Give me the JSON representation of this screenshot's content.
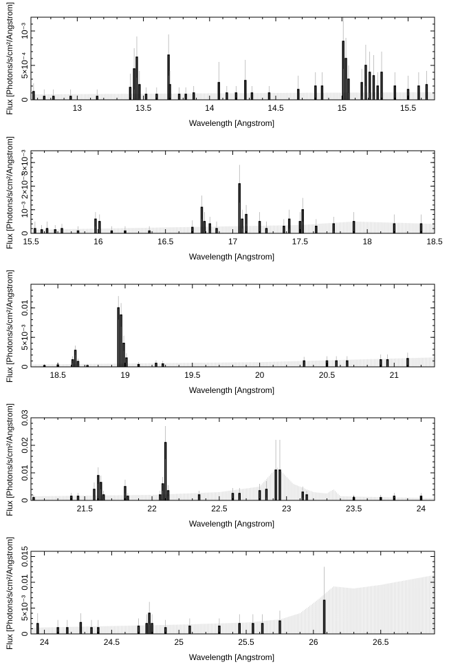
{
  "chart_data": [
    {
      "type": "bar",
      "xlabel": "Wavelength [Angstrom]",
      "ylabel": "Flux [Photons/s/cm²/Angstrom]",
      "xlim": [
        12.65,
        15.7
      ],
      "ylim": [
        0,
        0.0012
      ],
      "x_ticks": [
        {
          "v": 13,
          "label": "13"
        },
        {
          "v": 13.5,
          "label": "13.5"
        },
        {
          "v": 14,
          "label": "14"
        },
        {
          "v": 14.5,
          "label": "14.5"
        },
        {
          "v": 15,
          "label": "15"
        },
        {
          "v": 15.5,
          "label": "15.5"
        }
      ],
      "y_ticks": [
        {
          "v": 0,
          "label": "0"
        },
        {
          "v": 0.0005,
          "label": "5×10⁻⁴"
        },
        {
          "v": 0.001,
          "label": "10⁻³"
        }
      ],
      "background_error": [
        [
          12.7,
          8e-05
        ],
        [
          14.5,
          0.0001
        ],
        [
          15.7,
          0.00011
        ]
      ],
      "lines": [
        {
          "x": 12.67,
          "y": 0.00012,
          "err": 0.00012
        },
        {
          "x": 12.75,
          "y": 5e-05,
          "err": 0.0001
        },
        {
          "x": 12.82,
          "y": 5e-05,
          "err": 0.0001
        },
        {
          "x": 12.95,
          "y": 5e-05,
          "err": 0.0001
        },
        {
          "x": 13.15,
          "y": 5e-05,
          "err": 0.0001
        },
        {
          "x": 13.4,
          "y": 0.00018,
          "err": 0.0002
        },
        {
          "x": 13.43,
          "y": 0.00045,
          "err": 0.0003
        },
        {
          "x": 13.45,
          "y": 0.00062,
          "err": 0.0003
        },
        {
          "x": 13.47,
          "y": 0.00022,
          "err": 0.0002
        },
        {
          "x": 13.52,
          "y": 8e-05,
          "err": 0.0001
        },
        {
          "x": 13.6,
          "y": 8e-05,
          "err": 0.0001
        },
        {
          "x": 13.69,
          "y": 0.00065,
          "err": 0.0003
        },
        {
          "x": 13.7,
          "y": 0.00022,
          "err": 0.0002
        },
        {
          "x": 13.77,
          "y": 8e-05,
          "err": 0.0001
        },
        {
          "x": 13.82,
          "y": 8e-05,
          "err": 0.0001
        },
        {
          "x": 13.88,
          "y": 0.0001,
          "err": 0.0001
        },
        {
          "x": 14.07,
          "y": 0.00025,
          "err": 0.0003
        },
        {
          "x": 14.13,
          "y": 0.0001,
          "err": 0.0001
        },
        {
          "x": 14.2,
          "y": 0.0001,
          "err": 0.0001
        },
        {
          "x": 14.27,
          "y": 0.00028,
          "err": 0.0003
        },
        {
          "x": 14.32,
          "y": 0.0001,
          "err": 0.0001
        },
        {
          "x": 14.45,
          "y": 0.0001,
          "err": 0.0001
        },
        {
          "x": 14.67,
          "y": 0.00015,
          "err": 0.0002
        },
        {
          "x": 14.8,
          "y": 0.0002,
          "err": 0.0002
        },
        {
          "x": 14.85,
          "y": 0.0002,
          "err": 0.0002
        },
        {
          "x": 15.01,
          "y": 0.00085,
          "err": 0.0004
        },
        {
          "x": 15.03,
          "y": 0.0006,
          "err": 0.0003
        },
        {
          "x": 15.05,
          "y": 0.0003,
          "err": 0.0002
        },
        {
          "x": 15.15,
          "y": 0.00025,
          "err": 0.0002
        },
        {
          "x": 15.18,
          "y": 0.0005,
          "err": 0.0003
        },
        {
          "x": 15.21,
          "y": 0.0004,
          "err": 0.0003
        },
        {
          "x": 15.24,
          "y": 0.00035,
          "err": 0.0003
        },
        {
          "x": 15.27,
          "y": 0.0002,
          "err": 0.0002
        },
        {
          "x": 15.3,
          "y": 0.0004,
          "err": 0.0003
        },
        {
          "x": 15.4,
          "y": 0.0002,
          "err": 0.0002
        },
        {
          "x": 15.5,
          "y": 0.00015,
          "err": 0.0002
        },
        {
          "x": 15.58,
          "y": 0.0002,
          "err": 0.0002
        },
        {
          "x": 15.64,
          "y": 0.00022,
          "err": 0.0002
        }
      ]
    },
    {
      "type": "bar",
      "xlabel": "Wavelength [Angstrom]",
      "ylabel": "Flux [Photons/s/cm²/Angstrom]",
      "xlim": [
        15.5,
        18.5
      ],
      "ylim": [
        0,
        0.0035
      ],
      "x_ticks": [
        {
          "v": 15.5,
          "label": "15.5"
        },
        {
          "v": 16,
          "label": "16"
        },
        {
          "v": 16.5,
          "label": "16.5"
        },
        {
          "v": 17,
          "label": "17"
        },
        {
          "v": 17.5,
          "label": "17.5"
        },
        {
          "v": 18,
          "label": "18"
        },
        {
          "v": 18.5,
          "label": "18.5"
        }
      ],
      "y_ticks": [
        {
          "v": 0,
          "label": "0"
        },
        {
          "v": 0.001,
          "label": "10⁻³"
        },
        {
          "v": 0.002,
          "label": "2×10⁻³"
        },
        {
          "v": 0.003,
          "label": "3×10⁻³"
        }
      ],
      "background_error": [
        [
          15.5,
          0.00015
        ],
        [
          17.5,
          0.00035
        ],
        [
          17.9,
          0.0005
        ],
        [
          18.5,
          0.0004
        ]
      ],
      "lines": [
        {
          "x": 15.53,
          "y": 0.0002,
          "err": 0.0003
        },
        {
          "x": 15.58,
          "y": 0.00015,
          "err": 0.0002
        },
        {
          "x": 15.62,
          "y": 0.0002,
          "err": 0.0003
        },
        {
          "x": 15.68,
          "y": 0.00015,
          "err": 0.0002
        },
        {
          "x": 15.73,
          "y": 0.0002,
          "err": 0.0002
        },
        {
          "x": 15.85,
          "y": 0.0001,
          "err": 0.0002
        },
        {
          "x": 15.98,
          "y": 0.0006,
          "err": 0.0003
        },
        {
          "x": 16.01,
          "y": 0.0005,
          "err": 0.0003
        },
        {
          "x": 16.1,
          "y": 0.0001,
          "err": 0.0002
        },
        {
          "x": 16.2,
          "y": 0.0001,
          "err": 0.0002
        },
        {
          "x": 16.38,
          "y": 0.0001,
          "err": 0.0002
        },
        {
          "x": 16.7,
          "y": 0.00025,
          "err": 0.0003
        },
        {
          "x": 16.77,
          "y": 0.0011,
          "err": 0.0005
        },
        {
          "x": 16.79,
          "y": 0.0005,
          "err": 0.0004
        },
        {
          "x": 16.83,
          "y": 0.0004,
          "err": 0.0003
        },
        {
          "x": 16.88,
          "y": 0.0002,
          "err": 0.0003
        },
        {
          "x": 17.05,
          "y": 0.0021,
          "err": 0.0008
        },
        {
          "x": 17.07,
          "y": 0.0006,
          "err": 0.0004
        },
        {
          "x": 17.1,
          "y": 0.0008,
          "err": 0.0004
        },
        {
          "x": 17.2,
          "y": 0.0005,
          "err": 0.0004
        },
        {
          "x": 17.25,
          "y": 0.0002,
          "err": 0.0003
        },
        {
          "x": 17.38,
          "y": 0.0003,
          "err": 0.0003
        },
        {
          "x": 17.42,
          "y": 0.0006,
          "err": 0.0004
        },
        {
          "x": 17.5,
          "y": 0.0005,
          "err": 0.0004
        },
        {
          "x": 17.52,
          "y": 0.001,
          "err": 0.0005
        },
        {
          "x": 17.62,
          "y": 0.0003,
          "err": 0.0003
        },
        {
          "x": 17.75,
          "y": 0.0004,
          "err": 0.0003
        },
        {
          "x": 17.9,
          "y": 0.0005,
          "err": 0.0004
        },
        {
          "x": 18.2,
          "y": 0.0004,
          "err": 0.0004
        },
        {
          "x": 18.4,
          "y": 0.0004,
          "err": 0.0004
        }
      ]
    },
    {
      "type": "bar",
      "xlabel": "Wavelength [Angstrom]",
      "ylabel": "Flux [Photons/s/cm²/Angstrom]",
      "xlim": [
        18.3,
        21.3
      ],
      "ylim": [
        0,
        0.014
      ],
      "x_ticks": [
        {
          "v": 18.5,
          "label": "18.5"
        },
        {
          "v": 19,
          "label": "19"
        },
        {
          "v": 19.5,
          "label": "19.5"
        },
        {
          "v": 20,
          "label": "20"
        },
        {
          "v": 20.5,
          "label": "20.5"
        },
        {
          "v": 21,
          "label": "21"
        }
      ],
      "y_ticks": [
        {
          "v": 0,
          "label": "0"
        },
        {
          "v": 0.005,
          "label": "5×10⁻³"
        },
        {
          "v": 0.01,
          "label": "0.01"
        }
      ],
      "background_error": [
        [
          18.3,
          0.0004
        ],
        [
          20,
          0.0008
        ],
        [
          21.3,
          0.0016
        ]
      ],
      "lines": [
        {
          "x": 18.4,
          "y": 0.0002,
          "err": 0.0003
        },
        {
          "x": 18.5,
          "y": 0.0003,
          "err": 0.0003
        },
        {
          "x": 18.61,
          "y": 0.0012,
          "err": 0.0006
        },
        {
          "x": 18.63,
          "y": 0.0028,
          "err": 0.0008
        },
        {
          "x": 18.65,
          "y": 0.0009,
          "err": 0.0005
        },
        {
          "x": 18.72,
          "y": 0.0002,
          "err": 0.0003
        },
        {
          "x": 18.95,
          "y": 0.01,
          "err": 0.002
        },
        {
          "x": 18.97,
          "y": 0.0088,
          "err": 0.002
        },
        {
          "x": 18.99,
          "y": 0.004,
          "err": 0.0013
        },
        {
          "x": 19.01,
          "y": 0.0015,
          "err": 0.0008
        },
        {
          "x": 19.1,
          "y": 0.0004,
          "err": 0.0004
        },
        {
          "x": 19.23,
          "y": 0.0006,
          "err": 0.0005
        },
        {
          "x": 19.28,
          "y": 0.0005,
          "err": 0.0005
        },
        {
          "x": 20.33,
          "y": 0.001,
          "err": 0.0007
        },
        {
          "x": 20.5,
          "y": 0.001,
          "err": 0.0008
        },
        {
          "x": 20.57,
          "y": 0.001,
          "err": 0.0008
        },
        {
          "x": 20.65,
          "y": 0.001,
          "err": 0.0008
        },
        {
          "x": 20.9,
          "y": 0.0012,
          "err": 0.0009
        },
        {
          "x": 20.95,
          "y": 0.0012,
          "err": 0.0009
        },
        {
          "x": 21.1,
          "y": 0.0014,
          "err": 0.001
        }
      ]
    },
    {
      "type": "bar",
      "xlabel": "Wavelength [Angstrom]",
      "ylabel": "Flux [Photons/s/cm²/Angstrom]",
      "xlim": [
        21.1,
        24.1
      ],
      "ylim": [
        0,
        0.03
      ],
      "x_ticks": [
        {
          "v": 21.5,
          "label": "21.5"
        },
        {
          "v": 22,
          "label": "22"
        },
        {
          "v": 22.5,
          "label": "22.5"
        },
        {
          "v": 23,
          "label": "23"
        },
        {
          "v": 23.5,
          "label": "23.5"
        },
        {
          "v": 24,
          "label": "24"
        }
      ],
      "y_ticks": [
        {
          "v": 0,
          "label": "0"
        },
        {
          "v": 0.01,
          "label": "0.01"
        },
        {
          "v": 0.02,
          "label": "0.02"
        },
        {
          "v": 0.03,
          "label": "0.03"
        }
      ],
      "background_error": [
        [
          21.1,
          0.0015
        ],
        [
          22,
          0.002
        ],
        [
          22.5,
          0.003
        ],
        [
          22.8,
          0.005
        ],
        [
          22.93,
          0.012
        ],
        [
          23.05,
          0.006
        ],
        [
          23.2,
          0.003
        ],
        [
          23.3,
          0.0025
        ],
        [
          23.35,
          0.004
        ],
        [
          23.4,
          0.0015
        ],
        [
          24.1,
          0.0008
        ]
      ],
      "lines": [
        {
          "x": 21.12,
          "y": 0.001,
          "err": 0.001
        },
        {
          "x": 21.4,
          "y": 0.0015,
          "err": 0.0012
        },
        {
          "x": 21.45,
          "y": 0.0015,
          "err": 0.0012
        },
        {
          "x": 21.57,
          "y": 0.004,
          "err": 0.0025
        },
        {
          "x": 21.6,
          "y": 0.009,
          "err": 0.003
        },
        {
          "x": 21.62,
          "y": 0.0065,
          "err": 0.0025
        },
        {
          "x": 21.64,
          "y": 0.002,
          "err": 0.0015
        },
        {
          "x": 21.8,
          "y": 0.005,
          "err": 0.0025
        },
        {
          "x": 21.82,
          "y": 0.0015,
          "err": 0.0012
        },
        {
          "x": 22.06,
          "y": 0.002,
          "err": 0.0015
        },
        {
          "x": 22.08,
          "y": 0.006,
          "err": 0.0025
        },
        {
          "x": 22.1,
          "y": 0.021,
          "err": 0.006
        },
        {
          "x": 22.12,
          "y": 0.0035,
          "err": 0.002
        },
        {
          "x": 22.35,
          "y": 0.002,
          "err": 0.0015
        },
        {
          "x": 22.6,
          "y": 0.0025,
          "err": 0.002
        },
        {
          "x": 22.65,
          "y": 0.0025,
          "err": 0.002
        },
        {
          "x": 22.8,
          "y": 0.0035,
          "err": 0.0025
        },
        {
          "x": 22.85,
          "y": 0.004,
          "err": 0.003
        },
        {
          "x": 22.92,
          "y": 0.011,
          "err": 0.011
        },
        {
          "x": 22.95,
          "y": 0.011,
          "err": 0.011
        },
        {
          "x": 23.12,
          "y": 0.003,
          "err": 0.002
        },
        {
          "x": 23.15,
          "y": 0.002,
          "err": 0.0015
        },
        {
          "x": 23.5,
          "y": 0.001,
          "err": 0.001
        },
        {
          "x": 23.7,
          "y": 0.001,
          "err": 0.001
        },
        {
          "x": 23.8,
          "y": 0.0015,
          "err": 0.0012
        },
        {
          "x": 24.0,
          "y": 0.0015,
          "err": 0.0012
        }
      ]
    },
    {
      "type": "bar",
      "xlabel": "Wavelength [Angstrom]",
      "ylabel": "Flux [Photons/s/cm²/Angstrom]",
      "xlim": [
        23.9,
        26.9
      ],
      "ylim": [
        0,
        0.016
      ],
      "x_ticks": [
        {
          "v": 24,
          "label": "24"
        },
        {
          "v": 24.5,
          "label": "24.5"
        },
        {
          "v": 25,
          "label": "25"
        },
        {
          "v": 25.5,
          "label": "25.5"
        },
        {
          "v": 26,
          "label": "26"
        },
        {
          "v": 26.5,
          "label": "26.5"
        }
      ],
      "y_ticks": [
        {
          "v": 0,
          "label": "0"
        },
        {
          "v": 0.005,
          "label": "5×10⁻³"
        },
        {
          "v": 0.01,
          "label": "0.01"
        },
        {
          "v": 0.015,
          "label": "0.015"
        }
      ],
      "background_error": [
        [
          23.9,
          0.0012
        ],
        [
          25,
          0.0018
        ],
        [
          25.5,
          0.0022
        ],
        [
          25.75,
          0.0028
        ],
        [
          25.9,
          0.004
        ],
        [
          26.05,
          0.007
        ],
        [
          26.15,
          0.0092
        ],
        [
          26.3,
          0.0088
        ],
        [
          26.5,
          0.0095
        ],
        [
          26.9,
          0.0114
        ]
      ],
      "lines": [
        {
          "x": 23.95,
          "y": 0.002,
          "err": 0.002
        },
        {
          "x": 24.1,
          "y": 0.0012,
          "err": 0.0015
        },
        {
          "x": 24.17,
          "y": 0.0012,
          "err": 0.0015
        },
        {
          "x": 24.27,
          "y": 0.0022,
          "err": 0.0018
        },
        {
          "x": 24.35,
          "y": 0.0012,
          "err": 0.0015
        },
        {
          "x": 24.4,
          "y": 0.0012,
          "err": 0.0015
        },
        {
          "x": 24.7,
          "y": 0.0015,
          "err": 0.0015
        },
        {
          "x": 24.76,
          "y": 0.002,
          "err": 0.0018
        },
        {
          "x": 24.78,
          "y": 0.004,
          "err": 0.0022
        },
        {
          "x": 24.8,
          "y": 0.002,
          "err": 0.0018
        },
        {
          "x": 24.9,
          "y": 0.0012,
          "err": 0.0015
        },
        {
          "x": 25.08,
          "y": 0.0015,
          "err": 0.0015
        },
        {
          "x": 25.3,
          "y": 0.0015,
          "err": 0.0015
        },
        {
          "x": 25.45,
          "y": 0.002,
          "err": 0.0018
        },
        {
          "x": 25.55,
          "y": 0.002,
          "err": 0.0018
        },
        {
          "x": 25.62,
          "y": 0.002,
          "err": 0.0018
        },
        {
          "x": 25.75,
          "y": 0.0025,
          "err": 0.002
        },
        {
          "x": 26.08,
          "y": 0.0065,
          "err": 0.0065
        }
      ]
    }
  ]
}
